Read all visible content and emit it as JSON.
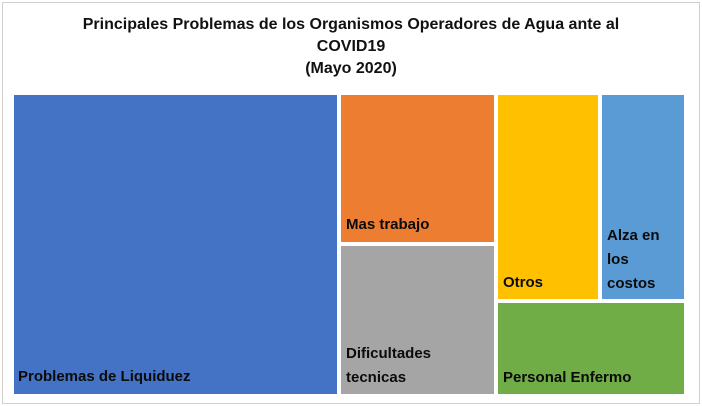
{
  "chart_data": {
    "type": "treemap",
    "title_lines": [
      "Principales Problemas de los Organismos Operadores de Agua ante al",
      "COVID19",
      "(Mayo 2020)"
    ],
    "items": [
      {
        "label_lines": [
          "Problemas de Liquiduez"
        ],
        "value": 45.8,
        "color": "#4472C4"
      },
      {
        "label_lines": [
          "Mas trabajo"
        ],
        "value": 9.2,
        "color": "#ED7D31"
      },
      {
        "label_lines": [
          "Dificultades",
          "tecnicas"
        ],
        "value": 9.2,
        "color": "#A5A5A5"
      },
      {
        "label_lines": [
          "Otros"
        ],
        "value": 8.4,
        "color": "#FFC000"
      },
      {
        "label_lines": [
          "Alza en",
          "los",
          "costos"
        ],
        "value": 6.7,
        "color": "#5B9BD5"
      },
      {
        "label_lines": [
          "Personal Enfermo"
        ],
        "value": 6.7,
        "color": "#70AD47"
      }
    ]
  }
}
